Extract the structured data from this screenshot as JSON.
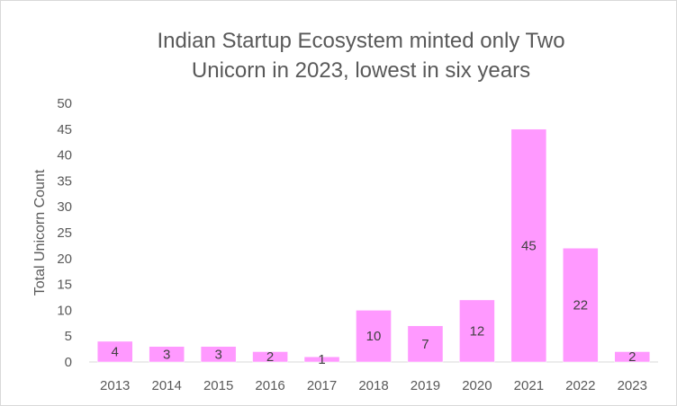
{
  "chart_data": {
    "type": "bar",
    "title_lines": [
      "Indian Startup Ecosystem minted only Two",
      "Unicorn in 2023, lowest in six years"
    ],
    "xlabel": "",
    "ylabel": "Total Unicorn Count",
    "categories": [
      "2013",
      "2014",
      "2015",
      "2016",
      "2017",
      "2018",
      "2019",
      "2020",
      "2021",
      "2022",
      "2023"
    ],
    "values": [
      4,
      3,
      3,
      2,
      1,
      10,
      7,
      12,
      45,
      22,
      2
    ],
    "ylim": [
      0,
      50
    ],
    "yticks": [
      0,
      5,
      10,
      15,
      20,
      25,
      30,
      35,
      40,
      45,
      50
    ],
    "grid": false,
    "legend": "none",
    "bar_color": "#FF99FF",
    "text_color": "#595959"
  }
}
